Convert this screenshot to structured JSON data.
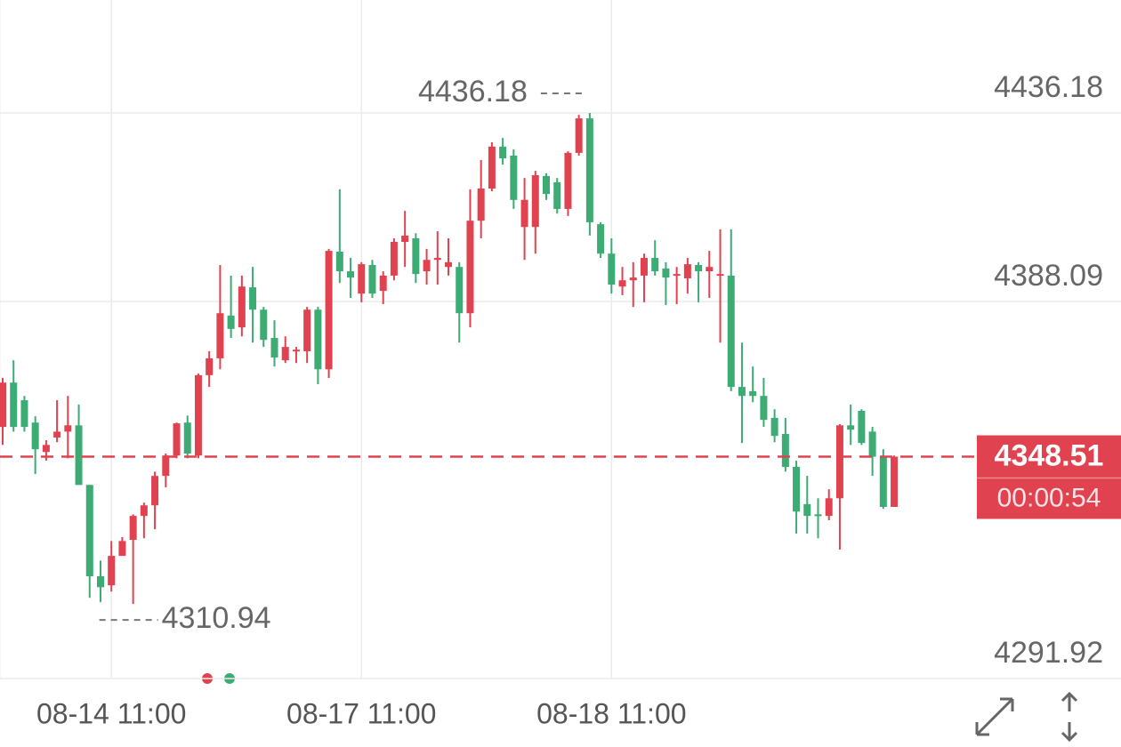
{
  "chart_data": {
    "type": "candlestick",
    "categories": [
      null,
      null,
      null,
      null,
      null,
      null,
      null,
      null,
      null,
      null,
      "08-14 11:00",
      null,
      null,
      null,
      null,
      null,
      null,
      null,
      null,
      null,
      null,
      null,
      null,
      null,
      null,
      null,
      null,
      null,
      null,
      null,
      null,
      null,
      null,
      "08-17 11:00",
      null,
      null,
      null,
      null,
      null,
      null,
      null,
      null,
      null,
      null,
      null,
      null,
      null,
      null,
      null,
      null,
      null,
      null,
      null,
      null,
      null,
      null,
      "08-18 11:00",
      null,
      null,
      null,
      null,
      null,
      null,
      null,
      null,
      null,
      null,
      null,
      null,
      null,
      null,
      null,
      null,
      null,
      null,
      null,
      null,
      null,
      null,
      null,
      null,
      null,
      null
    ],
    "open": [
      4356.1,
      4367.4,
      4362.9,
      4357.2,
      4349.7,
      4353.4,
      4354.9,
      4356.5,
      4341.3,
      4318.0,
      4315.7,
      4323.2,
      4327.3,
      4333.4,
      4336.1,
      4343.6,
      4348.8,
      4357.2,
      4348.8,
      4369.3,
      4373.6,
      4384.5,
      4381.5,
      4391.7,
      4386.0,
      4378.8,
      4373.1,
      4375.4,
      4375.4,
      4386.0,
      4370.8,
      4400.8,
      4395.8,
      4390.1,
      4397.4,
      4390.8,
      4394.7,
      4403.3,
      4404.2,
      4395.8,
      4398.7,
      4396.9,
      4396.9,
      4385.1,
      4408.7,
      4416.9,
      4427.6,
      4425.3,
      4407.1,
      4407.1,
      4420.1,
      4418.5,
      4411.7,
      4426.0,
      4434.8,
      4407.8,
      4400.3,
      4391.9,
      4393.5,
      4394.7,
      4399.2,
      4396.5,
      4394.7,
      4394.0,
      4397.4,
      4395.8,
      4394.7,
      4394.7,
      4366.3,
      4365.2,
      4364.0,
      4358.4,
      4354.3,
      4345.9,
      4336.4,
      4333.8,
      4333.4,
      4337.9,
      4356.5,
      4360.2,
      4354.9,
      4348.5,
      4335.7
    ],
    "high": [
      4368.6,
      4373.1,
      4364.0,
      4358.8,
      4352.7,
      4362.9,
      4364.0,
      4361.8,
      4341.3,
      4322.0,
      4327.0,
      4328.0,
      4333.8,
      4336.8,
      4344.7,
      4349.3,
      4357.2,
      4359.0,
      4369.7,
      4375.4,
      4397.4,
      4394.7,
      4394.7,
      4396.9,
      4386.7,
      4383.3,
      4379.2,
      4376.5,
      4386.7,
      4386.7,
      4401.5,
      4416.7,
      4399.2,
      4398.1,
      4398.7,
      4395.8,
      4404.2,
      4411.2,
      4405.5,
      4401.5,
      4406.0,
      4404.2,
      4398.1,
      4416.7,
      4424.2,
      4428.7,
      4429.8,
      4426.9,
      4419.6,
      4421.4,
      4420.8,
      4419.6,
      4426.4,
      4435.7,
      4436.18,
      4408.3,
      4404.2,
      4396.9,
      4398.1,
      4400.3,
      4403.7,
      4398.1,
      4396.9,
      4399.2,
      4398.1,
      4401.0,
      4406.5,
      4406.5,
      4377.6,
      4371.5,
      4368.6,
      4360.6,
      4358.4,
      4347.5,
      4343.6,
      4337.9,
      4340.2,
      4356.8,
      4361.8,
      4360.6,
      4356.1,
      4350.4,
      4348.8
    ],
    "low": [
      4351.5,
      4354.9,
      4354.9,
      4344.1,
      4347.5,
      4352.2,
      4348.1,
      4341.3,
      4312.5,
      4311.4,
      4314.1,
      4323.2,
      4310.94,
      4327.7,
      4330.0,
      4340.7,
      4348.1,
      4348.1,
      4348.1,
      4366.3,
      4370.8,
      4378.8,
      4379.2,
      4377.6,
      4376.5,
      4371.5,
      4372.4,
      4372.4,
      4372.4,
      4367.0,
      4368.6,
      4392.8,
      4389.0,
      4387.9,
      4389.0,
      4387.4,
      4393.5,
      4396.9,
      4392.8,
      4392.4,
      4392.4,
      4394.7,
      4377.6,
      4381.5,
      4404.2,
      4416.2,
      4423.0,
      4411.7,
      4398.7,
      4400.3,
      4414.0,
      4410.5,
      4409.9,
      4425.3,
      4404.9,
      4399.2,
      4390.1,
      4389.7,
      4386.7,
      4387.9,
      4394.7,
      4387.2,
      4387.4,
      4390.1,
      4387.9,
      4389.0,
      4377.6,
      4365.2,
      4352.0,
      4362.4,
      4356.1,
      4352.2,
      4344.7,
      4328.9,
      4328.9,
      4327.7,
      4332.3,
      4324.8,
      4351.5,
      4351.5,
      4343.6,
      4335.2,
      4335.7
    ],
    "close": [
      4367.4,
      4356.1,
      4356.1,
      4350.4,
      4351.5,
      4354.9,
      4356.5,
      4341.3,
      4318.0,
      4315.2,
      4323.2,
      4327.0,
      4333.4,
      4336.1,
      4343.6,
      4348.8,
      4357.0,
      4349.3,
      4369.3,
      4373.6,
      4385.1,
      4381.1,
      4391.9,
      4386.0,
      4378.3,
      4373.8,
      4376.5,
      4375.8,
      4386.0,
      4370.8,
      4401.0,
      4395.8,
      4394.2,
      4397.6,
      4390.1,
      4394.7,
      4403.3,
      4404.9,
      4395.1,
      4398.7,
      4399.2,
      4398.1,
      4385.1,
      4408.7,
      4416.9,
      4427.6,
      4424.6,
      4414.0,
      4414.0,
      4420.3,
      4415.5,
      4411.7,
      4426.0,
      4434.8,
      4408.3,
      4400.3,
      4392.4,
      4393.5,
      4394.2,
      4399.2,
      4395.8,
      4394.2,
      4395.1,
      4397.6,
      4395.8,
      4396.9,
      4395.1,
      4366.3,
      4364.0,
      4364.0,
      4357.9,
      4353.8,
      4345.9,
      4334.5,
      4333.4,
      4333.4,
      4337.9,
      4356.5,
      4355.4,
      4352.0,
      4348.5,
      4335.7,
      4348.51
    ],
    "up_color": "#e0434f",
    "down_color": "#3dab74",
    "ylim": [
      4291.92,
      4464.99
    ],
    "yticks": [
      4436.18,
      4388.09,
      4291.92
    ],
    "grid": true,
    "annotations": {
      "high": 4436.18,
      "low": 4310.94
    },
    "last_price": 4348.51,
    "countdown": "00:00:54"
  }
}
